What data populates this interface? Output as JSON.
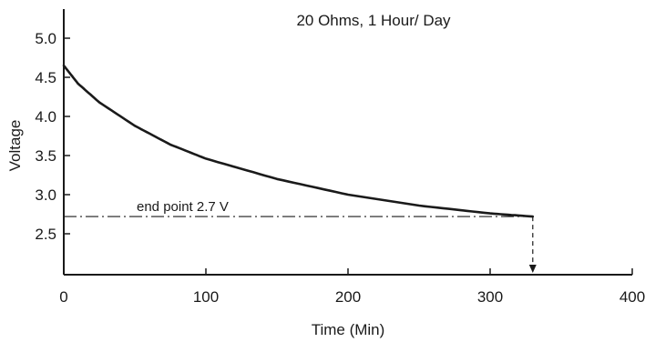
{
  "chart_data": {
    "type": "line",
    "title": "20 Ohms, 1 Hour/ Day",
    "xlabel": "Time (Min)",
    "ylabel": "Voltage",
    "xlim": [
      0,
      400
    ],
    "ylim": [
      2.0,
      5.25
    ],
    "x_ticks": [
      0,
      100,
      200,
      300,
      400
    ],
    "x_tick_labels": [
      "0",
      "100",
      "200",
      "300",
      "400"
    ],
    "y_ticks": [
      2.5,
      3.0,
      3.5,
      4.0,
      4.5,
      5.0
    ],
    "y_tick_labels": [
      "2.5",
      "3.0",
      "3.5",
      "4.0",
      "4.5",
      "5.0"
    ],
    "grid": false,
    "series": [
      {
        "x": [
          0,
          10,
          25,
          50,
          75,
          100,
          150,
          200,
          250,
          300,
          330
        ],
        "y": [
          4.65,
          4.42,
          4.18,
          3.88,
          3.64,
          3.46,
          3.2,
          3.0,
          2.86,
          2.76,
          2.72
        ]
      }
    ],
    "annotations": [
      {
        "text": "end point 2.7 V",
        "y": 2.72,
        "x_start": 0,
        "x_end": 330,
        "style": "dash-dot"
      },
      {
        "style": "dashed-arrow",
        "x": 330,
        "y_from": 2.72,
        "y_to": 2.0
      }
    ],
    "colors": {
      "line": "#1a1a1a",
      "axes": "#1a1a1a"
    }
  }
}
